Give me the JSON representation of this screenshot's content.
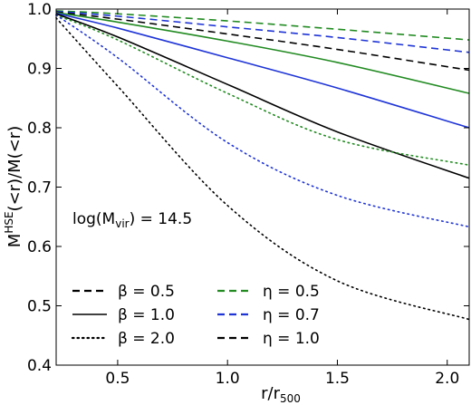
{
  "chart_data": {
    "type": "line",
    "xlabel": "r/r",
    "xlabel_sub": "500",
    "ylabel_parts": [
      "M",
      "HSE",
      "(<r)/M(<r)"
    ],
    "xlim": [
      0.22,
      2.1
    ],
    "ylim": [
      0.4,
      1.0
    ],
    "xticks": [
      0.5,
      1.0,
      1.5,
      2.0
    ],
    "xtick_labels": [
      "0.5",
      "1.0",
      "1.5",
      "2.0"
    ],
    "yticks": [
      0.4,
      0.5,
      0.6,
      0.7,
      0.8,
      0.9,
      1.0
    ],
    "ytick_labels": [
      "0.4",
      "0.5",
      "0.6",
      "0.7",
      "0.8",
      "0.9",
      "1.0"
    ],
    "grid": false,
    "annotation": {
      "prefix": "log(M",
      "sub": "vir",
      "suffix": ") = 14.5"
    },
    "colors": {
      "eta_0.5": "#228B22",
      "eta_0.7": "#1F35D6",
      "eta_1.0": "#000000"
    },
    "series": [
      {
        "beta": 0.5,
        "eta": 0.5,
        "style": "dashed",
        "color": "#228B22",
        "x": [
          0.22,
          0.5,
          1.0,
          1.5,
          2.1
        ],
        "y": [
          0.997,
          0.992,
          0.98,
          0.966,
          0.948
        ]
      },
      {
        "beta": 0.5,
        "eta": 0.7,
        "style": "dashed",
        "color": "#1F35D6",
        "x": [
          0.22,
          0.5,
          1.0,
          1.5,
          2.1
        ],
        "y": [
          0.996,
          0.988,
          0.97,
          0.952,
          0.927
        ]
      },
      {
        "beta": 0.5,
        "eta": 1.0,
        "style": "dashed",
        "color": "#000000",
        "x": [
          0.22,
          0.5,
          1.0,
          1.5,
          2.1
        ],
        "y": [
          0.995,
          0.983,
          0.958,
          0.932,
          0.897
        ]
      },
      {
        "beta": 1.0,
        "eta": 0.5,
        "style": "solid",
        "color": "#228B22",
        "x": [
          0.22,
          0.5,
          1.0,
          1.5,
          2.1
        ],
        "y": [
          0.994,
          0.978,
          0.946,
          0.91,
          0.858
        ]
      },
      {
        "beta": 1.0,
        "eta": 0.7,
        "style": "solid",
        "color": "#1F35D6",
        "x": [
          0.22,
          0.5,
          1.0,
          1.5,
          2.1
        ],
        "y": [
          0.993,
          0.968,
          0.918,
          0.867,
          0.8
        ]
      },
      {
        "beta": 1.0,
        "eta": 1.0,
        "style": "solid",
        "color": "#000000",
        "x": [
          0.22,
          0.5,
          1.0,
          1.5,
          2.1
        ],
        "y": [
          0.992,
          0.953,
          0.873,
          0.793,
          0.715
        ]
      },
      {
        "beta": 2.0,
        "eta": 0.5,
        "style": "dotted",
        "color": "#228B22",
        "x": [
          0.22,
          0.5,
          1.0,
          1.5,
          2.1
        ],
        "y": [
          0.99,
          0.948,
          0.858,
          0.78,
          0.737
        ]
      },
      {
        "beta": 2.0,
        "eta": 0.7,
        "style": "dotted",
        "color": "#1F35D6",
        "x": [
          0.22,
          0.5,
          1.0,
          1.5,
          2.1
        ],
        "y": [
          0.99,
          0.918,
          0.775,
          0.686,
          0.633
        ]
      },
      {
        "beta": 2.0,
        "eta": 1.0,
        "style": "dotted",
        "color": "#000000",
        "x": [
          0.22,
          0.5,
          1.0,
          1.5,
          2.1
        ],
        "y": [
          0.985,
          0.87,
          0.669,
          0.542,
          0.477
        ]
      }
    ],
    "legend": {
      "beta_entries": [
        {
          "label": "β = 0.5",
          "style": "dashed",
          "color": "#000000"
        },
        {
          "label": "β = 1.0",
          "style": "solid",
          "color": "#000000"
        },
        {
          "label": "β = 2.0",
          "style": "dotted",
          "color": "#000000"
        }
      ],
      "eta_entries": [
        {
          "label": "η = 0.5",
          "style": "dashed",
          "color": "#228B22"
        },
        {
          "label": "η = 0.7",
          "style": "dashed",
          "color": "#1F35D6"
        },
        {
          "label": "η = 1.0",
          "style": "dashed",
          "color": "#000000"
        }
      ],
      "placement": "lower-left"
    }
  }
}
